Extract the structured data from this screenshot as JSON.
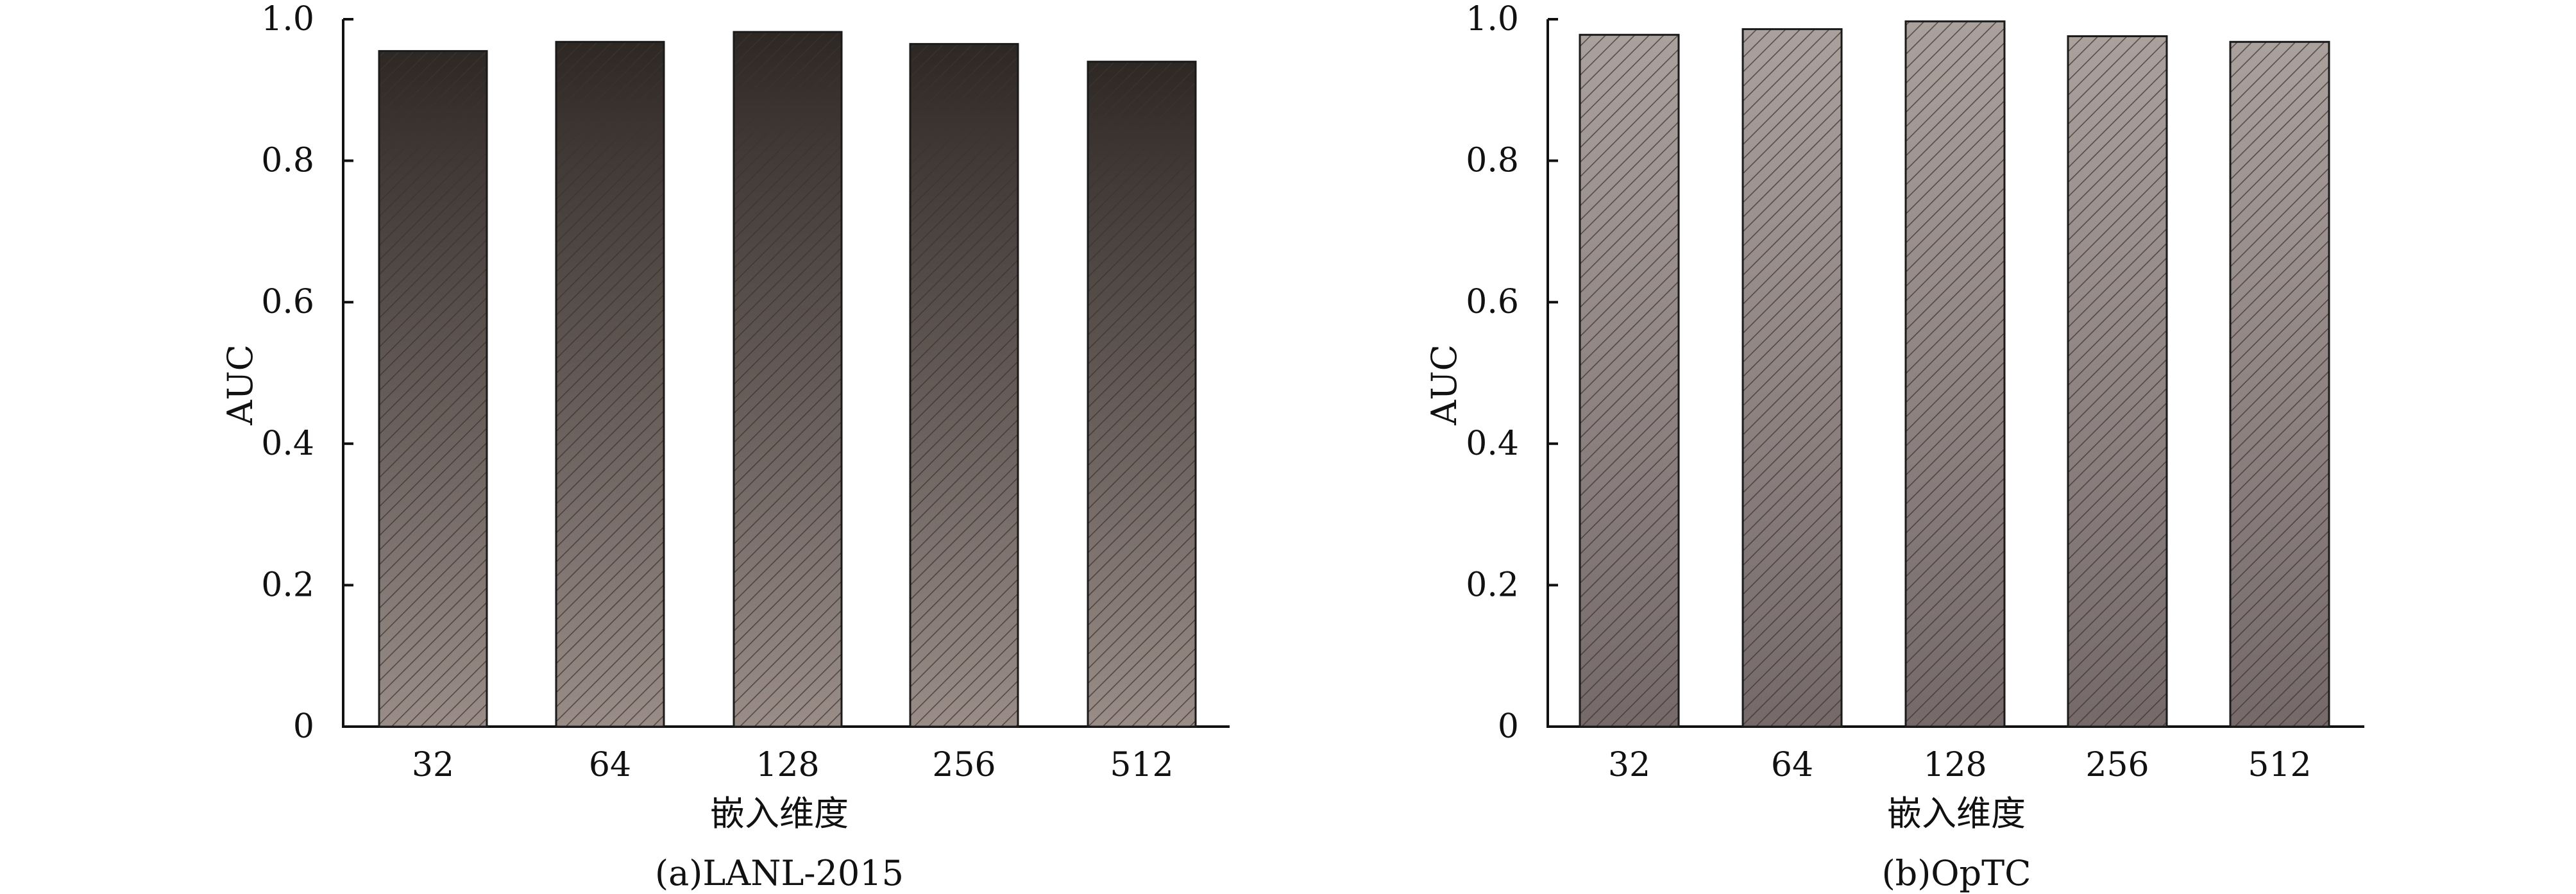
{
  "chart_data": [
    {
      "type": "bar",
      "title": "(a)LANL-2015",
      "xlabel": "嵌入维度",
      "ylabel": "AUC",
      "categories": [
        "32",
        "64",
        "128",
        "256",
        "512"
      ],
      "values": [
        0.955,
        0.968,
        0.982,
        0.965,
        0.94
      ],
      "ylim": [
        0,
        1.0
      ],
      "yticks": [
        0,
        0.2,
        0.4,
        0.6,
        0.8,
        1.0
      ],
      "ytick_labels": [
        "0",
        "0.2",
        "0.4",
        "0.6",
        "0.8",
        "1.0"
      ],
      "grid": false,
      "legend": "none",
      "bar_style": "diagonal hatch, vertical gradient dark top to light bottom",
      "colors": {
        "top": "#2e2824",
        "bottom": "#9a8d88",
        "hatch": "#3a3330",
        "edge": "#1a1a1a"
      }
    },
    {
      "type": "bar",
      "title": "(b)OpTC",
      "xlabel": "嵌入维度",
      "ylabel": "AUC",
      "categories": [
        "32",
        "64",
        "128",
        "256",
        "512"
      ],
      "values": [
        0.978,
        0.986,
        0.997,
        0.976,
        0.968
      ],
      "ylim": [
        0,
        1.0
      ],
      "yticks": [
        0,
        0.2,
        0.4,
        0.6,
        0.8,
        1.0
      ],
      "ytick_labels": [
        "0",
        "0.2",
        "0.4",
        "0.6",
        "0.8",
        "1.0"
      ],
      "grid": false,
      "legend": "none",
      "bar_style": "diagonal hatch, vertical gradient light top to darker bottom",
      "colors": {
        "top": "#aaa09c",
        "bottom": "#75696a",
        "hatch": "#3a3330",
        "edge": "#1a1a1a"
      }
    }
  ]
}
